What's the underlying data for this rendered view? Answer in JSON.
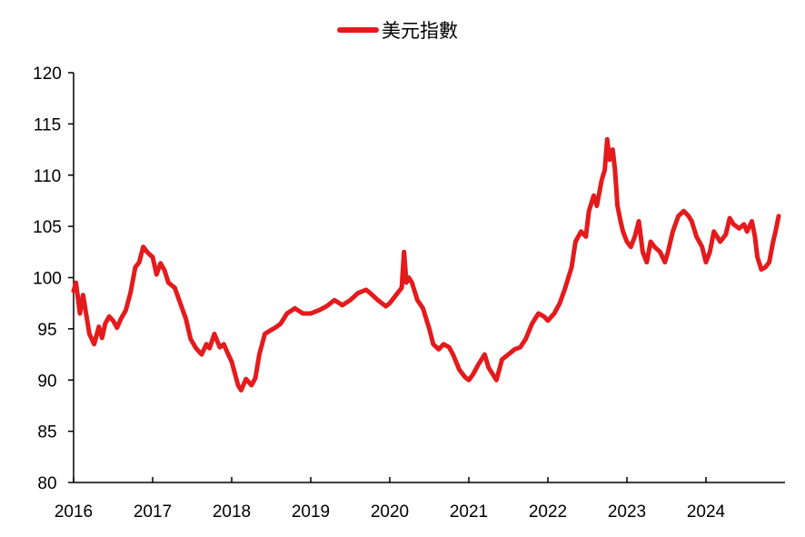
{
  "chart_data": {
    "type": "line",
    "title": "",
    "xlabel": "",
    "ylabel": "",
    "ylim": [
      80,
      120
    ],
    "xlim": [
      2016,
      2025
    ],
    "yticks": [
      "80",
      "85",
      "90",
      "95",
      "100",
      "105",
      "110",
      "115",
      "120"
    ],
    "xticks": [
      "2016",
      "2017",
      "2018",
      "2019",
      "2020",
      "2021",
      "2022",
      "2023",
      "2024"
    ],
    "grid": false,
    "legend": "top-center",
    "series": [
      {
        "name": "美元指數",
        "color": "#e41a1c",
        "x": [
          2016.0,
          2016.03,
          2016.08,
          2016.12,
          2016.2,
          2016.26,
          2016.32,
          2016.36,
          2016.4,
          2016.45,
          2016.5,
          2016.55,
          2016.6,
          2016.66,
          2016.72,
          2016.78,
          2016.83,
          2016.88,
          2016.93,
          2016.97,
          2017.0,
          2017.05,
          2017.1,
          2017.15,
          2017.2,
          2017.28,
          2017.35,
          2017.42,
          2017.48,
          2017.55,
          2017.62,
          2017.68,
          2017.72,
          2017.78,
          2017.85,
          2017.9,
          2017.95,
          2018.0,
          2018.08,
          2018.12,
          2018.18,
          2018.25,
          2018.3,
          2018.35,
          2018.42,
          2018.48,
          2018.55,
          2018.62,
          2018.7,
          2018.8,
          2018.9,
          2019.0,
          2019.1,
          2019.2,
          2019.3,
          2019.4,
          2019.5,
          2019.6,
          2019.7,
          2019.75,
          2019.85,
          2019.95,
          2020.0,
          2020.1,
          2020.15,
          2020.18,
          2020.21,
          2020.24,
          2020.28,
          2020.35,
          2020.42,
          2020.5,
          2020.55,
          2020.62,
          2020.68,
          2020.75,
          2020.8,
          2020.88,
          2020.95,
          2021.0,
          2021.05,
          2021.12,
          2021.2,
          2021.25,
          2021.35,
          2021.42,
          2021.5,
          2021.58,
          2021.65,
          2021.72,
          2021.8,
          2021.88,
          2021.95,
          2022.0,
          2022.08,
          2022.15,
          2022.22,
          2022.3,
          2022.35,
          2022.42,
          2022.48,
          2022.52,
          2022.58,
          2022.62,
          2022.68,
          2022.72,
          2022.75,
          2022.78,
          2022.82,
          2022.85,
          2022.88,
          2022.92,
          2022.95,
          2023.0,
          2023.05,
          2023.1,
          2023.15,
          2023.2,
          2023.25,
          2023.3,
          2023.35,
          2023.42,
          2023.48,
          2023.52,
          2023.58,
          2023.65,
          2023.72,
          2023.78,
          2023.82,
          2023.88,
          2023.95,
          2024.0,
          2024.05,
          2024.1,
          2024.18,
          2024.25,
          2024.3,
          2024.35,
          2024.42,
          2024.48,
          2024.52,
          2024.58,
          2024.62,
          2024.65,
          2024.7,
          2024.75,
          2024.8,
          2024.85,
          2024.88,
          2024.92
        ],
        "values": [
          98.7,
          99.5,
          96.5,
          98.3,
          94.5,
          93.5,
          95.2,
          94.1,
          95.5,
          96.2,
          95.8,
          95.1,
          96.0,
          96.8,
          98.5,
          101.0,
          101.5,
          103.0,
          102.5,
          102.2,
          102.0,
          100.3,
          101.4,
          100.7,
          99.5,
          99.0,
          97.5,
          96.0,
          94.0,
          93.1,
          92.5,
          93.5,
          93.1,
          94.5,
          93.2,
          93.5,
          92.6,
          91.8,
          89.5,
          89.0,
          90.1,
          89.5,
          90.2,
          92.5,
          94.5,
          94.8,
          95.1,
          95.5,
          96.5,
          97.0,
          96.5,
          96.5,
          96.8,
          97.2,
          97.8,
          97.3,
          97.8,
          98.5,
          98.8,
          98.5,
          97.8,
          97.2,
          97.5,
          98.5,
          99.0,
          102.5,
          99.5,
          100.0,
          99.5,
          97.8,
          97.0,
          95.0,
          93.5,
          93.0,
          93.5,
          93.2,
          92.5,
          91.0,
          90.3,
          90.0,
          90.5,
          91.5,
          92.5,
          91.2,
          90.0,
          92.0,
          92.5,
          93.0,
          93.2,
          94.0,
          95.5,
          96.5,
          96.2,
          95.8,
          96.5,
          97.5,
          99.0,
          101.0,
          103.5,
          104.5,
          104.0,
          106.5,
          108.0,
          107.0,
          109.5,
          110.5,
          113.5,
          111.5,
          112.5,
          110.5,
          107.0,
          105.5,
          104.5,
          103.5,
          103.0,
          104.0,
          105.5,
          102.5,
          101.5,
          103.5,
          103.0,
          102.5,
          101.5,
          102.5,
          104.5,
          106.0,
          106.5,
          106.0,
          105.5,
          104.0,
          103.0,
          101.5,
          102.5,
          104.5,
          103.5,
          104.2,
          105.8,
          105.2,
          104.8,
          105.2,
          104.5,
          105.5,
          104.0,
          102.0,
          100.8,
          101.0,
          101.5,
          103.5,
          104.5,
          106.0
        ]
      }
    ]
  }
}
